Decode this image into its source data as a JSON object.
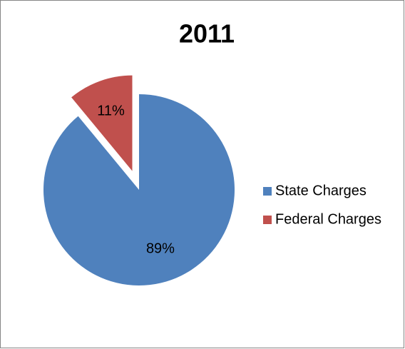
{
  "chart_data": {
    "type": "pie",
    "title": "2011",
    "categories": [
      "State Charges",
      "Federal Charges"
    ],
    "values": [
      89,
      11
    ],
    "value_labels": [
      "89%",
      "11%"
    ],
    "colors": [
      "#4f81bd",
      "#c0504d"
    ],
    "exploded": [
      false,
      true
    ],
    "legend": "right"
  }
}
